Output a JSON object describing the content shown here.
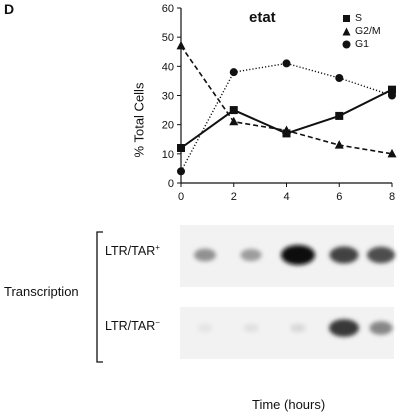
{
  "panel": {
    "label": "D"
  },
  "chart_data": {
    "type": "line",
    "title": "etat",
    "xlabel": "Time (hours)",
    "ylabel": "% Total Cells",
    "x": [
      0,
      2,
      4,
      6,
      8
    ],
    "xlim": [
      0,
      8
    ],
    "ylim": [
      0,
      60
    ],
    "xticks": [
      0,
      2,
      4,
      6,
      8
    ],
    "yticks": [
      0,
      10,
      20,
      30,
      40,
      50,
      60
    ],
    "grid": false,
    "legend_position": "top-right",
    "series": [
      {
        "name": "S",
        "marker": "square",
        "style": "solid",
        "values": [
          12,
          25,
          17,
          23,
          32
        ]
      },
      {
        "name": "G2/M",
        "marker": "triangle",
        "style": "dashed",
        "values": [
          47,
          21,
          18,
          13,
          10
        ]
      },
      {
        "name": "G1",
        "marker": "circle",
        "style": "dotted",
        "values": [
          4,
          38,
          41,
          36,
          30
        ]
      }
    ]
  },
  "blot": {
    "section_label": "Transcription",
    "rows": [
      {
        "label": "LTR/TAR",
        "superscript": "+",
        "intensities": [
          0.4,
          0.35,
          1.0,
          0.75,
          0.7
        ]
      },
      {
        "label": "LTR/TAR",
        "superscript": "−",
        "intensities": [
          0.03,
          0.05,
          0.08,
          0.8,
          0.45
        ]
      }
    ]
  }
}
